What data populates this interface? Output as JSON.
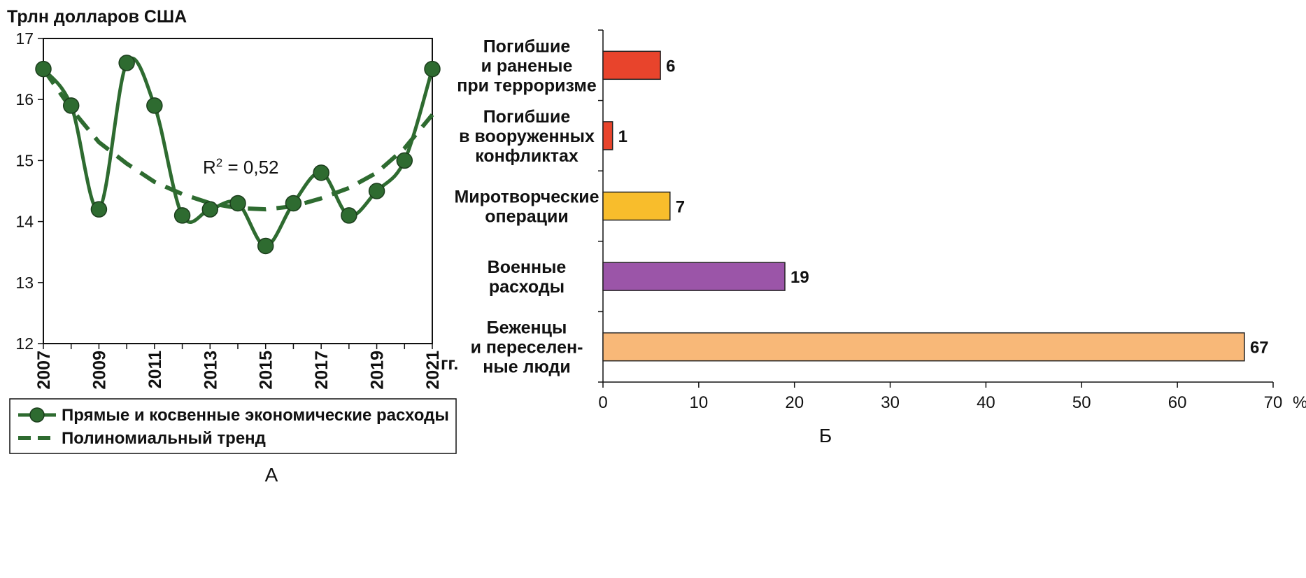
{
  "chart_data": [
    {
      "id": "A",
      "type": "line",
      "caption": "А",
      "ylabel": "Трлн долларов США",
      "xunit": "гг.",
      "ylim": [
        12,
        17
      ],
      "yticks": [
        "12",
        "13",
        "14",
        "15",
        "16",
        "17"
      ],
      "xlim": [
        2007,
        2021
      ],
      "xticks": [
        "2007",
        "2009",
        "2011",
        "2013",
        "2015",
        "2017",
        "2019",
        "2021"
      ],
      "grid": false,
      "legend_position": "bottom",
      "annotation": {
        "text": "R",
        "sup": "2",
        "rest": " = 0,52"
      },
      "series": [
        {
          "name": "Прямые и косвенные экономические расходы",
          "style": "solid-markers",
          "color": "#2e6b30",
          "x": [
            2007,
            2008,
            2009,
            2010,
            2011,
            2012,
            2013,
            2014,
            2015,
            2016,
            2017,
            2018,
            2019,
            2020,
            2021
          ],
          "y": [
            16.5,
            15.9,
            14.2,
            16.6,
            15.9,
            14.1,
            14.2,
            14.3,
            13.6,
            14.3,
            14.8,
            14.1,
            14.5,
            15.0,
            16.5
          ]
        },
        {
          "name": "Полиномиальный тренд",
          "style": "dashed",
          "color": "#2e6b30",
          "x": [
            2007,
            2008,
            2009,
            2010,
            2011,
            2012,
            2013,
            2014,
            2015,
            2016,
            2017,
            2018,
            2019,
            2020,
            2021
          ],
          "y": [
            16.5,
            15.85,
            15.3,
            14.95,
            14.65,
            14.45,
            14.3,
            14.22,
            14.2,
            14.25,
            14.38,
            14.55,
            14.8,
            15.2,
            15.75
          ]
        }
      ]
    },
    {
      "id": "B",
      "type": "bar",
      "orientation": "horizontal",
      "caption": "Б",
      "xunit": "%",
      "xlim": [
        0,
        70
      ],
      "xticks": [
        "0",
        "10",
        "20",
        "30",
        "40",
        "50",
        "60",
        "70"
      ],
      "grid": false,
      "categories": [
        [
          "Погибшие",
          "и раненые",
          "при терроризме"
        ],
        [
          "Погибшие",
          "в вооруженных",
          "конфликтах"
        ],
        [
          "Миротворческие",
          "операции"
        ],
        [
          "Военные",
          "расходы"
        ],
        [
          "Беженцы",
          "и переселен-",
          "ные люди"
        ]
      ],
      "values": [
        6,
        1,
        7,
        19,
        67
      ],
      "value_labels": [
        "6",
        "1",
        "7",
        "19",
        "67"
      ],
      "colors": [
        "#e8442c",
        "#e8442c",
        "#f8bd2c",
        "#9b55a8",
        "#f8b878"
      ]
    }
  ]
}
